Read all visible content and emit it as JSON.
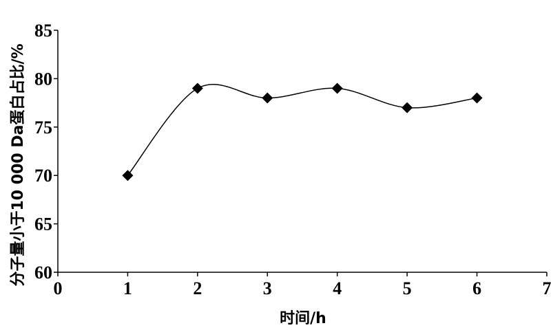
{
  "chart_data": {
    "type": "line",
    "xlabel": "时间/h",
    "ylabel": "分子量小于10 000 Da蛋白占比/%",
    "xlim": [
      0,
      7
    ],
    "ylim": [
      60,
      85
    ],
    "x_ticks": [
      0,
      1,
      2,
      3,
      4,
      5,
      6,
      7
    ],
    "y_ticks": [
      60,
      65,
      70,
      75,
      80,
      85
    ],
    "x_tick_labels": [
      "0",
      "1",
      "2",
      "3",
      "4",
      "5",
      "6",
      "7"
    ],
    "y_tick_labels": [
      "60",
      "65",
      "70",
      "75",
      "80",
      "85"
    ],
    "grid": false,
    "legend": "none",
    "series": [
      {
        "x": [
          1,
          2,
          3,
          4,
          5,
          6
        ],
        "values": [
          70,
          79,
          78,
          79,
          77,
          78
        ],
        "marker": "diamond",
        "smooth": true,
        "color": "#000000"
      }
    ]
  }
}
